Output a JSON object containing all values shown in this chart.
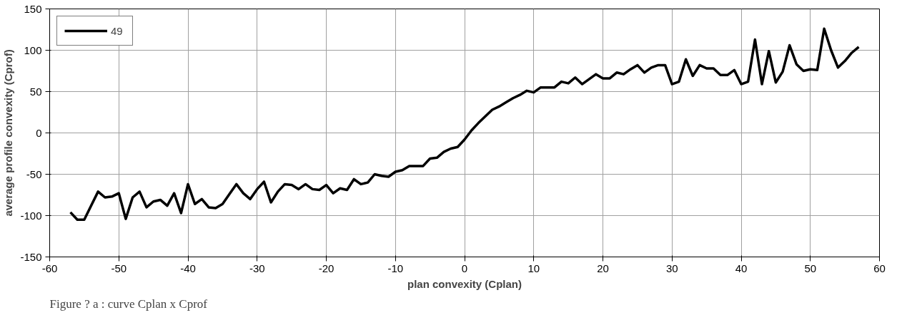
{
  "chart_data": {
    "type": "line",
    "xlabel": "plan convexity (Cplan)",
    "ylabel": "average profile convexity (Cprof)",
    "annotations": [
      "Figure ? a : curve Cplan x Cprof"
    ],
    "x": [
      -57,
      -56,
      -55,
      -54,
      -53,
      -52,
      -51,
      -50,
      -49,
      -48,
      -47,
      -46,
      -45,
      -44,
      -43,
      -42,
      -41,
      -40,
      -39,
      -38,
      -37,
      -36,
      -35,
      -34,
      -33,
      -32,
      -31,
      -30,
      -29,
      -28,
      -27,
      -26,
      -25,
      -24,
      -23,
      -22,
      -21,
      -20,
      -19,
      -18,
      -17,
      -16,
      -15,
      -14,
      -13,
      -12,
      -11,
      -10,
      -9,
      -8,
      -7,
      -6,
      -5,
      -4,
      -3,
      -2,
      -1,
      0,
      1,
      2,
      3,
      4,
      5,
      6,
      7,
      8,
      9,
      10,
      11,
      12,
      13,
      14,
      15,
      16,
      17,
      18,
      19,
      20,
      21,
      22,
      23,
      24,
      25,
      26,
      27,
      28,
      29,
      30,
      31,
      32,
      33,
      34,
      35,
      36,
      37,
      38,
      39,
      40,
      41,
      42,
      43,
      44,
      45,
      46,
      47,
      48,
      49,
      50,
      51,
      52,
      53,
      54,
      55,
      56,
      57
    ],
    "series": [
      {
        "name": "49",
        "color": "#000000",
        "values": [
          -96,
          -105,
          -105,
          -88,
          -71,
          -78,
          -77,
          -73,
          -104,
          -78,
          -71,
          -90,
          -83,
          -81,
          -88,
          -73,
          -97,
          -62,
          -86,
          -80,
          -90,
          -91,
          -86,
          -74,
          -62,
          -73,
          -80,
          -68,
          -59,
          -84,
          -71,
          -62,
          -63,
          -68,
          -62,
          -68,
          -69,
          -63,
          -73,
          -67,
          -69,
          -56,
          -62,
          -60,
          -50,
          -52,
          -53,
          -47,
          -45,
          -40,
          -40,
          -40,
          -31,
          -30,
          -23,
          -19,
          -17,
          -8,
          3,
          12,
          20,
          28,
          32,
          37,
          42,
          46,
          51,
          49,
          55,
          55,
          55,
          62,
          60,
          67,
          59,
          65,
          71,
          66,
          66,
          73,
          71,
          77,
          82,
          73,
          79,
          82,
          82,
          59,
          62,
          89,
          69,
          82,
          78,
          78,
          70,
          70,
          76,
          59,
          62,
          113,
          59,
          99,
          61,
          74,
          106,
          83,
          75,
          77,
          76,
          126,
          100,
          79,
          87,
          97,
          104
        ]
      }
    ],
    "xlim": [
      -60,
      60
    ],
    "ylim": [
      -150,
      150
    ],
    "xticks": [
      -60,
      -50,
      -40,
      -30,
      -20,
      -10,
      0,
      10,
      20,
      30,
      40,
      50,
      60
    ],
    "yticks": [
      -150,
      -100,
      -50,
      0,
      50,
      100,
      150
    ],
    "grid": true,
    "legend": "top left",
    "marker": "none",
    "line_style": "solid"
  }
}
